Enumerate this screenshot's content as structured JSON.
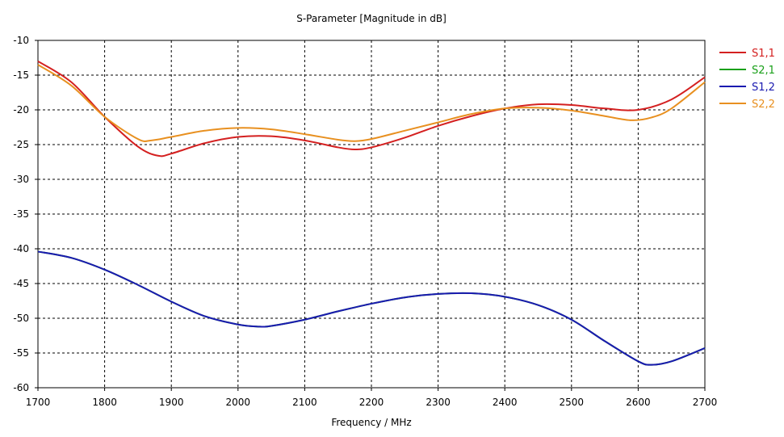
{
  "chart_data": {
    "type": "line",
    "title": "S-Parameter [Magnitude in dB]",
    "xlabel": "Frequency / MHz",
    "ylabel": "",
    "xlim": [
      1700,
      2700
    ],
    "ylim": [
      -60,
      -10
    ],
    "xticks": [
      1700,
      1800,
      1900,
      2000,
      2100,
      2200,
      2300,
      2400,
      2500,
      2600,
      2700
    ],
    "yticks": [
      -10,
      -15,
      -20,
      -25,
      -30,
      -35,
      -40,
      -45,
      -50,
      -55,
      -60
    ],
    "grid": true,
    "legend_position": "right",
    "series": [
      {
        "name": "S1,1",
        "color": "#d42020",
        "x": [
          1700,
          1750,
          1800,
          1850,
          1880,
          1900,
          1950,
          2000,
          2050,
          2100,
          2150,
          2175,
          2200,
          2250,
          2300,
          2350,
          2400,
          2450,
          2500,
          2550,
          2600,
          2650,
          2700
        ],
        "y": [
          -13,
          -16,
          -21,
          -25.3,
          -26.6,
          -26.3,
          -24.8,
          -23.9,
          -23.8,
          -24.4,
          -25.4,
          -25.7,
          -25.4,
          -24,
          -22.3,
          -20.9,
          -19.8,
          -19.2,
          -19.3,
          -19.8,
          -20,
          -18.5,
          -15.3
        ]
      },
      {
        "name": "S2,1",
        "color": "#1aa01a",
        "x": [
          1700,
          1750,
          1800,
          1850,
          1900,
          1950,
          2000,
          2030,
          2050,
          2100,
          2150,
          2200,
          2250,
          2300,
          2350,
          2400,
          2450,
          2500,
          2550,
          2600,
          2620,
          2650,
          2700
        ],
        "y": [
          -40.4,
          -41.3,
          -43,
          -45.2,
          -47.6,
          -49.7,
          -50.9,
          -51.2,
          -51.1,
          -50.2,
          -49,
          -47.9,
          -47,
          -46.5,
          -46.4,
          -46.9,
          -48.1,
          -50.2,
          -53.3,
          -56.2,
          -56.7,
          -56.2,
          -54.3
        ]
      },
      {
        "name": "S1,2",
        "color": "#1a1ab0",
        "x": [
          1700,
          1750,
          1800,
          1850,
          1900,
          1950,
          2000,
          2030,
          2050,
          2100,
          2150,
          2200,
          2250,
          2300,
          2350,
          2400,
          2450,
          2500,
          2550,
          2600,
          2620,
          2650,
          2700
        ],
        "y": [
          -40.4,
          -41.3,
          -43,
          -45.2,
          -47.6,
          -49.7,
          -50.9,
          -51.2,
          -51.1,
          -50.2,
          -49,
          -47.9,
          -47,
          -46.5,
          -46.4,
          -46.9,
          -48.1,
          -50.2,
          -53.3,
          -56.2,
          -56.7,
          -56.2,
          -54.3
        ]
      },
      {
        "name": "S2,2",
        "color": "#e89020",
        "x": [
          1700,
          1750,
          1800,
          1850,
          1870,
          1900,
          1950,
          2000,
          2050,
          2100,
          2150,
          2175,
          2200,
          2250,
          2300,
          2350,
          2400,
          2450,
          2500,
          2550,
          2590,
          2620,
          2650,
          2700
        ],
        "y": [
          -13.5,
          -16.5,
          -21,
          -24.2,
          -24.4,
          -23.9,
          -23,
          -22.6,
          -22.8,
          -23.5,
          -24.3,
          -24.5,
          -24.2,
          -23,
          -21.8,
          -20.6,
          -19.8,
          -19.7,
          -20.1,
          -20.9,
          -21.5,
          -21.1,
          -19.8,
          -16
        ]
      }
    ]
  }
}
